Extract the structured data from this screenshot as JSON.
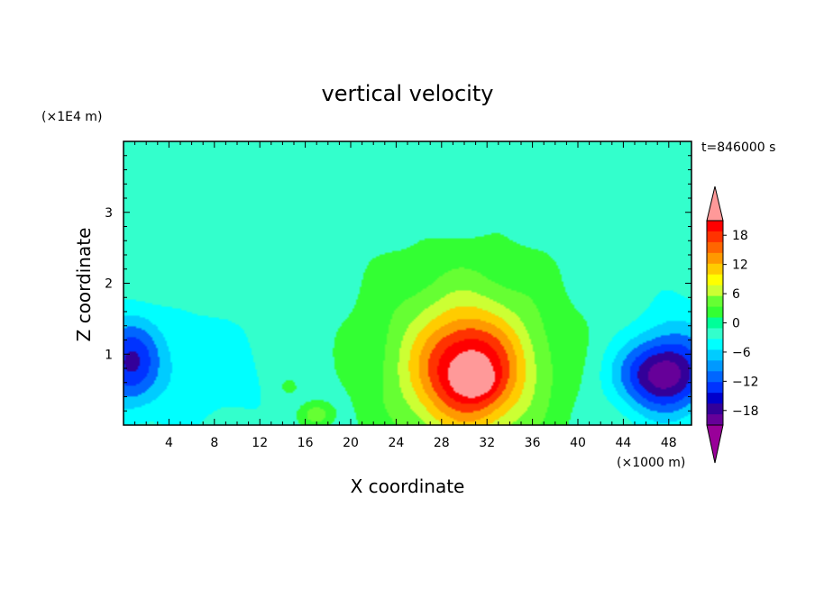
{
  "chart_data": {
    "type": "heatmap",
    "title": "vertical velocity",
    "xlabel": "X coordinate",
    "ylabel": "Z coordinate",
    "x_unit": "(×1000 m)",
    "y_unit": "(×1E4 m)",
    "time_label": "t=846000 s",
    "xlim": [
      0,
      50
    ],
    "ylim": [
      0,
      4
    ],
    "x_ticks": [
      4,
      8,
      12,
      16,
      20,
      24,
      28,
      32,
      36,
      40,
      44,
      48
    ],
    "y_ticks": [
      1,
      2,
      3
    ],
    "colorbar": {
      "ticks": [
        18,
        12,
        6,
        0,
        -6,
        -12,
        -18
      ],
      "levels": [
        21,
        18,
        15,
        12,
        9,
        6,
        3,
        0,
        -3,
        -6,
        -9,
        -12,
        -15,
        -18,
        -21
      ],
      "colors": [
        "#ff0000",
        "#ff3300",
        "#ff6600",
        "#ff9900",
        "#ffcc00",
        "#ffff00",
        "#ccff33",
        "#66ff33",
        "#33ff33",
        "#00ff99",
        "#33ffcc",
        "#00ffff",
        "#00ccff",
        "#0099ff",
        "#0066ff",
        "#0033ff",
        "#0000cc",
        "#330099",
        "#660099"
      ],
      "over_color": "#ff9999",
      "under_color": "#990099"
    },
    "features": [
      {
        "x": 30.5,
        "z": 0.75,
        "sx": 4.5,
        "sz": 0.75,
        "value": 16
      },
      {
        "x": 30,
        "z": 0.9,
        "sx": 7.5,
        "sz": 1.3,
        "value": 9
      },
      {
        "x": 31,
        "z": 0.6,
        "sx": 1.6,
        "sz": 0.2,
        "value": 5
      },
      {
        "x": 47,
        "z": 0.7,
        "sx": 3.8,
        "sz": 0.5,
        "value": -15
      },
      {
        "x": 49,
        "z": 0.9,
        "sx": 3.5,
        "sz": 0.9,
        "value": -6
      },
      {
        "x": 0.5,
        "z": 0.9,
        "sx": 2.6,
        "sz": 0.6,
        "value": -12
      },
      {
        "x": 6,
        "z": 0.8,
        "sx": 8,
        "sz": 0.9,
        "value": -4
      },
      {
        "x": 17,
        "z": 0.15,
        "sx": 1.3,
        "sz": 0.15,
        "value": 6
      },
      {
        "x": 14.5,
        "z": 0.55,
        "sx": 1,
        "sz": 0.15,
        "value": 3
      },
      {
        "x": 26,
        "z": 3.3,
        "sx": 14,
        "sz": 0.6,
        "value": -1.5
      }
    ],
    "background_value": -1
  }
}
